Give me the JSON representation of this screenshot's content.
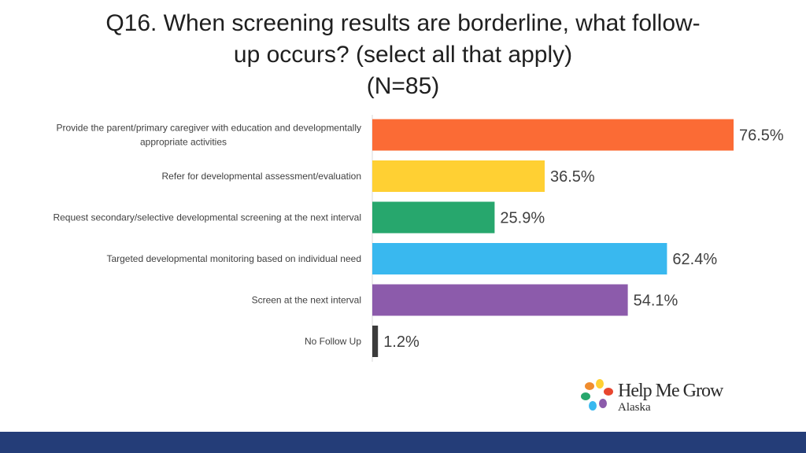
{
  "title": {
    "line1": "Q16. When screening results are borderline, what follow-",
    "line2": "up occurs? (select all that apply)",
    "line3": "(N=85)"
  },
  "chart_data": {
    "type": "bar",
    "orientation": "horizontal",
    "categories": [
      [
        "Provide the parent/primary caregiver with education and developmentally",
        "appropriate activities"
      ],
      [
        "Refer for developmental assessment/evaluation"
      ],
      [
        "Request secondary/selective developmental screening at the next interval"
      ],
      [
        "Targeted developmental monitoring based on individual need"
      ],
      [
        "Screen at the next interval"
      ],
      [
        "No Follow Up"
      ]
    ],
    "values": [
      76.5,
      36.5,
      25.9,
      62.4,
      54.1,
      1.2
    ],
    "data_labels": [
      "76.5%",
      "36.5%",
      "25.9%",
      "62.4%",
      "54.1%",
      "1.2%"
    ],
    "colors": [
      "#fb6b35",
      "#ffd033",
      "#27a76d",
      "#39b8ef",
      "#8c5bab",
      "#3b3b3b"
    ],
    "xlim": [
      0,
      100
    ],
    "grid": false,
    "legend": "none"
  },
  "logo": {
    "name": "Help Me Grow",
    "sub": "Alaska",
    "petal_colors": [
      "#f08c2e",
      "#ffd033",
      "#27a76d",
      "#39b8ef",
      "#8c5bab",
      "#e8462f"
    ]
  },
  "footer": {
    "color": "#243d78"
  }
}
